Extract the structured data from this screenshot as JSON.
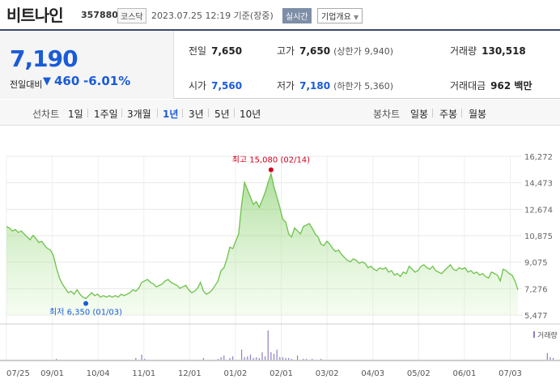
{
  "header": {
    "name": "비트나인",
    "code": "357880",
    "market": "코스닥",
    "datetime": "2023.07.25 12:19 기준(장중)",
    "realtime": "실시간",
    "company_btn": "기업개요"
  },
  "price": {
    "current": "7,190",
    "change_label": "전일대비",
    "change_arrow": "▼",
    "change_value": "460",
    "change_pct": "-6.01%"
  },
  "stats": {
    "prev_label": "전일",
    "prev_value": "7,650",
    "high_label": "고가",
    "high_value": "7,650",
    "upper_limit": "(상한가 9,940)",
    "volume_label": "거래량",
    "volume_value": "130,518",
    "open_label": "시가",
    "open_value": "7,560",
    "low_label": "저가",
    "low_value": "7,180",
    "lower_limit": "(하한가 5,360)",
    "amount_label": "거래대금",
    "amount_value": "962 백만"
  },
  "periods": {
    "line_label": "선차트",
    "items": [
      "1일",
      "1주일",
      "3개월",
      "1년",
      "3년",
      "5년",
      "10년"
    ],
    "selected": "1년",
    "candle_label": "봉차트",
    "candle_items": [
      "일봉",
      "주봉",
      "월봉"
    ]
  },
  "colors": {
    "accent": "#1a5bd8",
    "up": "#d0021b",
    "line": "#6cc24a",
    "fill": "#d6f5c6"
  },
  "chart_data": {
    "type": "area",
    "ylim": [
      5477,
      16272
    ],
    "y_ticks": [
      "16,272",
      "14,473",
      "12,674",
      "10,875",
      "9,075",
      "7,276",
      "5,477"
    ],
    "x_ticks": [
      "07/25",
      "09/01",
      "10/04",
      "11/01",
      "12/01",
      "01/02",
      "02/01",
      "03/02",
      "04/03",
      "05/02",
      "06/01",
      "07/03"
    ],
    "high_annotation": "최고 15,080 (02/14)",
    "low_annotation": "최저 6,350 (01/03)",
    "volume_label": "거래량",
    "series": [
      {
        "values": [
          11500,
          11400,
          11200,
          11300,
          11100,
          11200,
          11000,
          10800,
          10600,
          10900,
          10700,
          10400,
          10500,
          10200,
          10000,
          9900,
          9500,
          8700,
          8000,
          7600,
          7300,
          7000,
          7100,
          6900,
          7200,
          6900,
          6700,
          6600,
          6800,
          7000,
          6800,
          6900,
          6700,
          6800,
          6700,
          6800,
          6700,
          6800,
          6700,
          6900,
          6800,
          6900,
          7000,
          7200,
          7100,
          7300,
          7700,
          7800,
          7900,
          7700,
          7600,
          7400,
          7500,
          7600,
          7800,
          7900,
          7700,
          7600,
          7500,
          7300,
          7400,
          7500,
          7200,
          7000,
          7100,
          7300,
          7700,
          7100,
          6900,
          7000,
          7200,
          7500,
          7800,
          8500,
          8700,
          9300,
          10100,
          10000,
          10500,
          11000,
          13000,
          14500,
          14000,
          13500,
          13000,
          13200,
          12800,
          13300,
          13800,
          14500,
          15080,
          14200,
          13500,
          12800,
          12000,
          11800,
          11000,
          10800,
          11400,
          11200,
          11000,
          11500,
          11600,
          11700,
          11400,
          11000,
          10800,
          10300,
          10200,
          10500,
          10300,
          10000,
          9800,
          9900,
          9600,
          9400,
          9200,
          9100,
          9300,
          9200,
          9000,
          9100,
          9000,
          8700,
          8800,
          8600,
          8500,
          8700,
          8600,
          8700,
          8400,
          8500,
          8200,
          8300,
          8100,
          8400,
          8300,
          8800,
          8600,
          8400,
          8500,
          8800,
          8900,
          8700,
          8600,
          8800,
          8500,
          8400,
          8300,
          8500,
          8700,
          8900,
          8600,
          8500,
          8700,
          8600,
          8700,
          8400,
          8500,
          8300,
          8400,
          8200,
          8300,
          8100,
          8000,
          8400,
          8300,
          8200,
          7800,
          8600,
          8500,
          8300,
          8200,
          7800,
          7190
        ]
      }
    ],
    "volume": [
      0,
      0,
      0,
      0,
      0,
      0,
      0,
      0,
      0,
      0,
      0,
      0,
      0,
      0,
      0,
      0,
      0,
      1,
      0,
      0,
      0,
      0,
      0,
      0,
      0,
      0,
      0,
      0,
      0,
      0,
      0,
      0,
      0,
      0,
      0,
      0,
      0,
      0,
      0,
      0,
      0,
      0,
      0,
      0,
      2,
      0,
      6,
      1,
      0,
      0,
      0,
      0,
      0,
      0,
      0,
      0,
      0,
      0,
      0,
      0,
      0,
      0,
      0,
      0,
      0,
      0,
      0,
      2,
      0,
      0,
      0,
      0,
      1,
      3,
      5,
      0,
      2,
      4,
      0,
      0,
      12,
      3,
      4,
      6,
      2,
      3,
      2,
      9,
      4,
      35,
      9,
      7,
      12,
      3,
      3,
      2,
      2,
      1,
      0,
      5,
      0,
      1,
      1,
      0,
      1,
      0,
      0,
      1,
      0,
      0,
      0,
      0,
      0,
      0,
      0,
      0,
      0,
      0,
      0,
      0,
      0,
      0,
      0,
      0,
      0,
      0,
      0,
      0,
      0,
      0,
      0,
      0,
      0,
      0,
      0,
      0,
      0,
      0,
      0,
      0,
      0,
      0,
      0,
      0,
      0,
      0,
      0,
      0,
      0,
      0,
      0,
      0,
      0,
      0,
      0,
      0,
      0,
      0,
      0,
      0,
      0,
      0,
      0,
      0,
      0,
      0,
      0,
      0,
      0,
      0,
      0,
      0,
      0,
      0,
      0,
      0,
      0,
      0,
      0,
      0,
      0,
      0,
      0,
      0,
      8,
      3,
      2
    ]
  }
}
